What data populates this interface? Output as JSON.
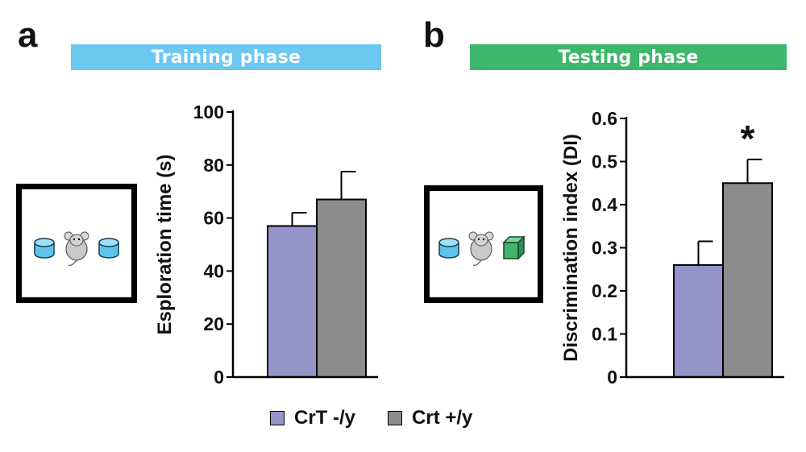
{
  "panels": {
    "a": {
      "letter": "a",
      "banner": "Training phase",
      "banner_color": "#6cc8ef"
    },
    "b": {
      "letter": "b",
      "banner": "Testing phase",
      "banner_color": "#3db76a"
    }
  },
  "colors": {
    "series1": "#9494c8",
    "series2": "#8c8c8c",
    "cylinder": "#5ec3ea",
    "cube": "#3fb56a"
  },
  "icons": {
    "mouse": "mouse-icon",
    "cylinder": "cylinder-object-icon",
    "cube": "cube-object-icon"
  },
  "legend": [
    {
      "label": "CrT -/y",
      "color": "#9494c8"
    },
    {
      "label": "Crt +/y",
      "color": "#8c8c8c"
    }
  ],
  "chart_data": [
    {
      "type": "bar",
      "categories": [
        "CrT -/y",
        "Crt +/y"
      ],
      "values": [
        57,
        67
      ],
      "errors": [
        5,
        10.5
      ],
      "ylabel": "Esploration time (s)",
      "ylim": [
        0,
        100
      ],
      "yticks": [
        "0",
        "20",
        "40",
        "60",
        "80",
        "100"
      ],
      "annotations": []
    },
    {
      "type": "bar",
      "categories": [
        "CrT -/y",
        "Crt +/y"
      ],
      "values": [
        0.26,
        0.45
      ],
      "errors": [
        0.055,
        0.055
      ],
      "ylabel": "Discrimination index (DI)",
      "ylim": [
        0,
        0.6
      ],
      "yticks": [
        "0",
        "0.1",
        "0.2",
        "0.3",
        "0.4",
        "0.5",
        "0.6"
      ],
      "annotations": [
        "*"
      ]
    }
  ]
}
